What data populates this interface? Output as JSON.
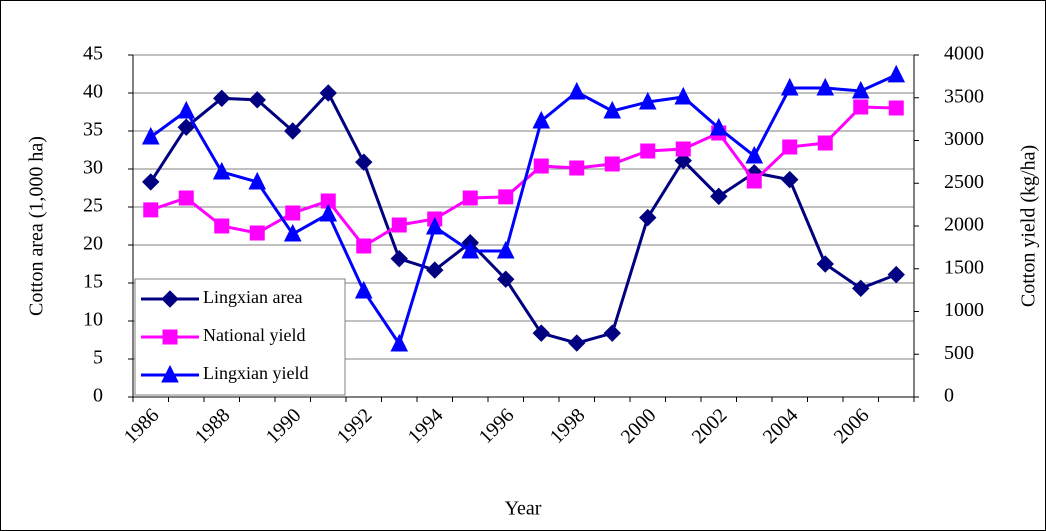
{
  "chart_data": {
    "type": "line",
    "x_label": "Year",
    "y_label": "Cotton area (1,000 ha)",
    "y2_label": "Cotton yield (kg/ha)",
    "categories": [
      1986,
      null,
      1988,
      null,
      1990,
      null,
      1992,
      null,
      1994,
      null,
      1996,
      null,
      1998,
      null,
      2000,
      null,
      2002,
      null,
      2004,
      null,
      2006,
      null
    ],
    "ylim": [
      0,
      45
    ],
    "yticks": [
      0,
      5,
      10,
      15,
      20,
      25,
      30,
      35,
      40,
      45
    ],
    "y2lim": [
      0,
      4000
    ],
    "y2ticks": [
      0,
      500,
      1000,
      1500,
      2000,
      2500,
      3000,
      3500,
      4000
    ],
    "grid": true,
    "legend": "lower left",
    "series": [
      {
        "name": "Lingxian area",
        "color": "#000080",
        "marker": "diamond",
        "values": [
          28.3,
          35.5,
          39.3,
          39.1,
          35.0,
          40.0,
          30.9,
          18.2,
          16.7,
          20.3,
          15.5,
          8.4,
          7.1,
          8.4,
          23.6,
          31.1,
          26.4,
          29.5,
          28.6,
          17.5,
          14.3,
          16.1
        ]
      },
      {
        "name": "National yield",
        "color": "#ff00ff",
        "marker": "square",
        "axis": "y2",
        "values": [
          2188,
          2328,
          2000,
          1918,
          2152,
          2292,
          1766,
          2012,
          2082,
          2328,
          2340,
          2702,
          2678,
          2725,
          2877,
          2900,
          3088,
          2526,
          2924,
          2971,
          3392,
          3380
        ]
      },
      {
        "name": "Lingxian yield",
        "color": "#0000ff",
        "marker": "triangle",
        "axis": "y2",
        "values": [
          3041,
          3345,
          2632,
          2515,
          1906,
          2140,
          1240,
          620,
          1988,
          1708,
          1708,
          3228,
          3567,
          3345,
          3450,
          3509,
          3146,
          2819,
          3614,
          3614,
          3579,
          3767
        ]
      }
    ]
  }
}
